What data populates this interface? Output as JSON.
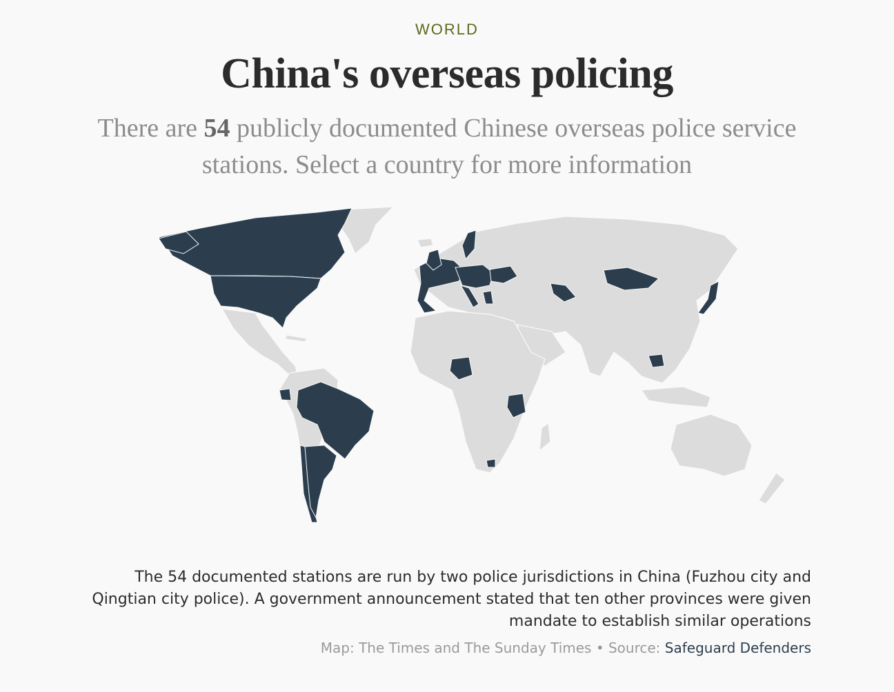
{
  "section": "WORLD",
  "headline": "China's overseas policing",
  "standfirst": {
    "before": "There are ",
    "count": "54",
    "after": " publicly documented Chinese overseas police service stations. Select a country for more information"
  },
  "map": {
    "highlight_color": "#2c3e4e",
    "land_color": "#dcdcdc",
    "countries_with_stations": [
      "Canada",
      "United States",
      "Ecuador",
      "Brazil",
      "Chile",
      "Argentina",
      "Ireland",
      "United Kingdom",
      "Portugal",
      "Spain",
      "France",
      "Netherlands",
      "Germany",
      "Czech Republic",
      "Austria",
      "Hungary",
      "Italy",
      "Serbia",
      "Romania",
      "Ukraine",
      "Greece",
      "Sweden",
      "Uzbekistan",
      "Mongolia",
      "Japan",
      "Cambodia",
      "Nigeria",
      "Tanzania",
      "South Africa"
    ]
  },
  "caption": "The 54 documented stations are run by two police jurisdictions in China (Fuzhou city and Qingtian city police). A government announcement stated that ten other provinces were given mandate to establish similar operations",
  "credit": {
    "map_credit": "Map: The Times and The Sunday Times",
    "separator": " • Source: ",
    "source_link": "Safeguard Defenders"
  }
}
